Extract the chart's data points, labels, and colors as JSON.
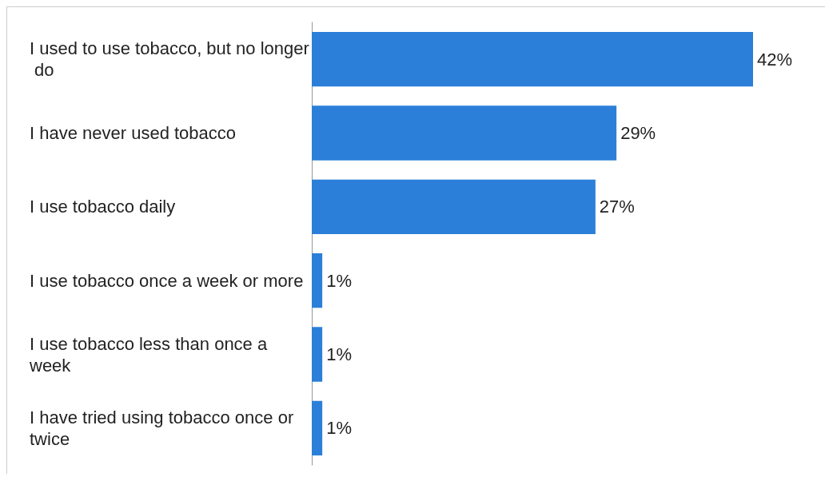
{
  "chart_data": {
    "type": "bar",
    "orientation": "horizontal",
    "categories": [
      "I used to use tobacco, but no longer do",
      "I have never used tobacco",
      "I use tobacco daily",
      "I use tobacco once a week or more",
      "I use tobacco less than once a week",
      "I have tried using tobacco once or twice"
    ],
    "values": [
      42,
      29,
      27,
      1,
      1,
      1
    ],
    "value_labels": [
      "42%",
      "29%",
      "27%",
      "1%",
      "1%",
      "1%"
    ],
    "color": "#2b7fd9",
    "grid": false
  }
}
